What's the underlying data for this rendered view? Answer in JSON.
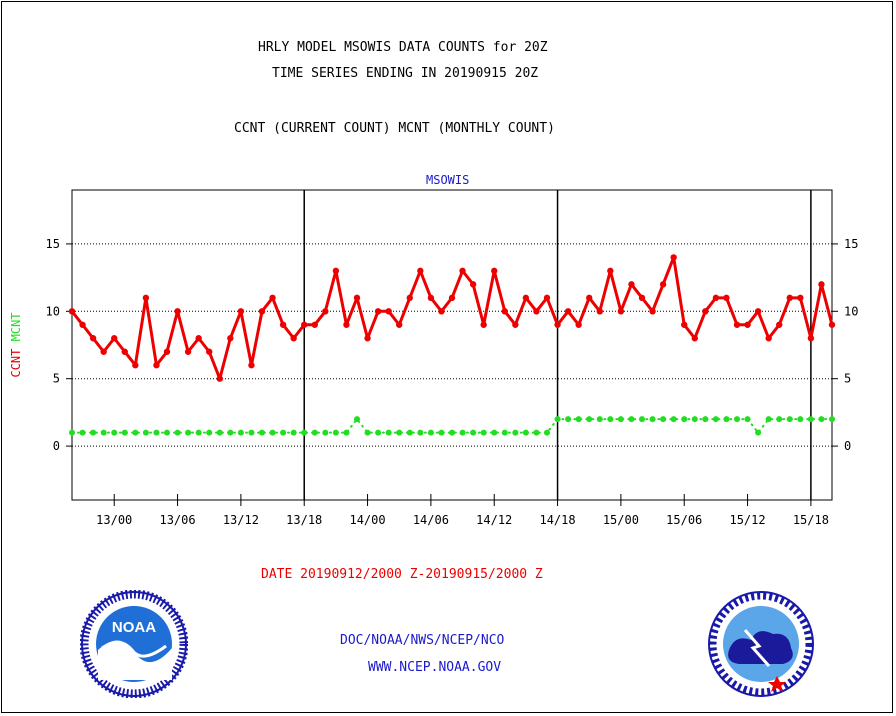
{
  "header": {
    "title_line1": "HRLY MODEL MSOWIS DATA COUNTS for 20Z",
    "title_line2": "TIME SERIES ENDING IN 20190915 20Z",
    "legend_text": "CCNT (CURRENT COUNT) MCNT (MONTHLY COUNT)"
  },
  "footer": {
    "date_range": "DATE 20190912/2000 Z-20190915/2000 Z",
    "org": "DOC/NOAA/NWS/NCEP/NCO",
    "url": "WWW.NCEP.NOAA.GOV"
  },
  "logos": {
    "left": {
      "name": "noaa-logo",
      "text": "NOAA"
    },
    "right": {
      "name": "national-weather-service-logo"
    }
  },
  "chart_data": {
    "type": "line",
    "title": "MSOWIS",
    "ylabel_left": [
      "CCNT",
      "MCNT"
    ],
    "ylim": [
      -4,
      19
    ],
    "yticks": [
      0,
      5,
      10,
      15
    ],
    "grid": true,
    "x_tick_labels": [
      "13/00",
      "13/06",
      "13/12",
      "13/18",
      "14/00",
      "14/06",
      "14/12",
      "14/18",
      "15/00",
      "15/06",
      "15/12",
      "15/18"
    ],
    "x_tick_hours": [
      4,
      10,
      16,
      22,
      28,
      34,
      40,
      46,
      52,
      58,
      64,
      70
    ],
    "x_day_lines": [
      22,
      46,
      70
    ],
    "x_range_hours": [
      0,
      72
    ],
    "x_start": "2019-09-12 20Z",
    "series": [
      {
        "name": "CCNT",
        "color": "#ee0000",
        "values": [
          10,
          9,
          8,
          7,
          8,
          7,
          6,
          11,
          6,
          7,
          10,
          7,
          8,
          7,
          5,
          8,
          10,
          6,
          10,
          11,
          9,
          8,
          9,
          9,
          10,
          13,
          9,
          11,
          8,
          10,
          10,
          9,
          11,
          13,
          11,
          10,
          11,
          13,
          12,
          9,
          13,
          10,
          9,
          11,
          10,
          11,
          9,
          10,
          9,
          11,
          10,
          13,
          10,
          12,
          11,
          10,
          12,
          14,
          9,
          8,
          10,
          11,
          11,
          9,
          9,
          10,
          8,
          9,
          11,
          11,
          8,
          12,
          9
        ]
      },
      {
        "name": "MCNT",
        "color": "#22dd22",
        "values": [
          1,
          1,
          1,
          1,
          1,
          1,
          1,
          1,
          1,
          1,
          1,
          1,
          1,
          1,
          1,
          1,
          1,
          1,
          1,
          1,
          1,
          1,
          1,
          1,
          1,
          1,
          1,
          2,
          1,
          1,
          1,
          1,
          1,
          1,
          1,
          1,
          1,
          1,
          1,
          1,
          1,
          1,
          1,
          1,
          1,
          1,
          2,
          2,
          2,
          2,
          2,
          2,
          2,
          2,
          2,
          2,
          2,
          2,
          2,
          2,
          2,
          2,
          2,
          2,
          2,
          1,
          2,
          2,
          2,
          2,
          2,
          2,
          2
        ]
      }
    ]
  }
}
